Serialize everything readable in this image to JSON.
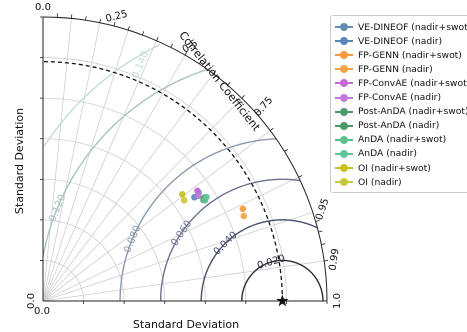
{
  "chart_data": {
    "type": "scatter",
    "subtype": "taylor-diagram",
    "xlabel": "Standard Deviation",
    "ylabel": "Standard Deviation",
    "corr_axis_label": "Correlation Coefficient",
    "std_range": [
      0.0,
      0.14
    ],
    "std_ticks_x_labels": [
      "0.0"
    ],
    "std_ticks_y_labels": [
      "0.0"
    ],
    "corr_tick_labels": [
      {
        "r": 0.0,
        "label": "0.0"
      },
      {
        "r": 0.25,
        "label": "0.25"
      },
      {
        "r": 0.5,
        "label": "0.5"
      },
      {
        "r": 0.75,
        "label": "0.75"
      },
      {
        "r": 0.95,
        "label": "0.95"
      },
      {
        "r": 0.99,
        "label": "0.99"
      },
      {
        "r": 1.0,
        "label": "1.0"
      }
    ],
    "reference_std": 0.118,
    "rmsd_contours": [
      {
        "value": 0.02,
        "label": "0.020",
        "color": "#2b2b3a"
      },
      {
        "value": 0.04,
        "label": "0.040",
        "color": "#4a4f6e"
      },
      {
        "value": 0.06,
        "label": "0.060",
        "color": "#6c7390"
      },
      {
        "value": 0.08,
        "label": "0.080",
        "color": "#8a9aae"
      },
      {
        "value": 0.12,
        "label": "0.120",
        "color": "#a9c2c4"
      },
      {
        "value": 0.14,
        "label": "0.140",
        "color": "#c5dcd8"
      }
    ],
    "legend_position": "right",
    "series": [
      {
        "name": "VE-DINEOF (nadir+swot)",
        "color": "#5f8db0",
        "points": [
          {
            "corr": 0.82,
            "std": 0.0935
          }
        ]
      },
      {
        "name": "VE-DINEOF (nadir)",
        "color": "#5b87b8",
        "points": [
          {
            "corr": 0.825,
            "std": 0.0905
          }
        ]
      },
      {
        "name": "FP-GENN (nadir+swot)",
        "color": "#f59a3c",
        "points": [
          {
            "corr": 0.908,
            "std": 0.1085
          }
        ]
      },
      {
        "name": "FP-GENN (nadir)",
        "color": "#f5a545",
        "points": [
          {
            "corr": 0.921,
            "std": 0.1075
          }
        ]
      },
      {
        "name": "FP-ConvAE (nadir+swot)",
        "color": "#c46ad0",
        "points": [
          {
            "corr": 0.814,
            "std": 0.0935
          }
        ]
      },
      {
        "name": "FP-ConvAE (nadir)",
        "color": "#c07ad8",
        "points": [
          {
            "corr": 0.828,
            "std": 0.0925
          }
        ]
      },
      {
        "name": "Post-AnDA (nadir+swot)",
        "color": "#4d9a6e",
        "points": [
          {
            "corr": 0.846,
            "std": 0.0935
          }
        ]
      },
      {
        "name": "Post-AnDA (nadir)",
        "color": "#4a9a68",
        "points": [
          {
            "corr": 0.842,
            "std": 0.0945
          }
        ]
      },
      {
        "name": "AnDA (nadir+swot)",
        "color": "#5ec08a",
        "points": [
          {
            "corr": 0.849,
            "std": 0.094
          }
        ]
      },
      {
        "name": "AnDA (nadir)",
        "color": "#62c59a",
        "points": [
          {
            "corr": 0.844,
            "std": 0.0955
          }
        ]
      },
      {
        "name": "OI (nadir+swot)",
        "color": "#c3c21e",
        "points": [
          {
            "corr": 0.794,
            "std": 0.0865
          }
        ]
      },
      {
        "name": "OI (nadir)",
        "color": "#c9c73a",
        "points": [
          {
            "corr": 0.814,
            "std": 0.0855
          }
        ]
      }
    ]
  }
}
